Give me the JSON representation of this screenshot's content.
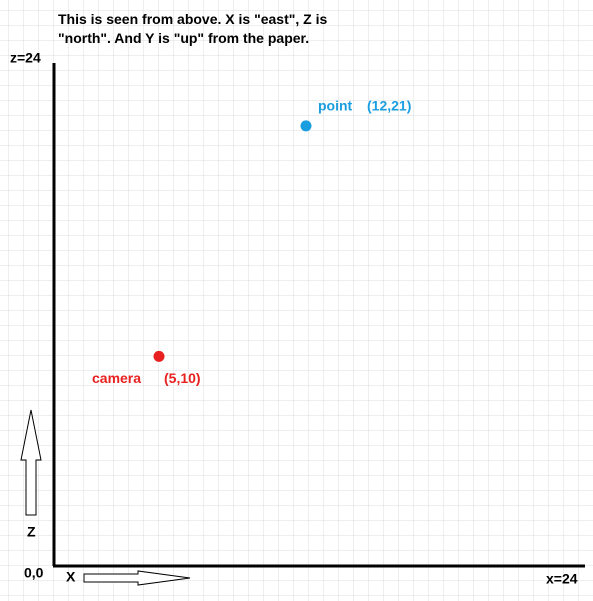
{
  "chart_data": {
    "type": "scatter",
    "title": "This is seen from above. X is \"east\", Z is \"north\". And Y is \"up\" from the paper.",
    "xlim": [
      0,
      24
    ],
    "ylim": [
      0,
      24
    ],
    "x_end_label": "x=24",
    "y_end_label": "z=24",
    "origin_label": "0,0",
    "x_axis_label": "X",
    "y_axis_label": "Z",
    "series": [
      {
        "name": "point",
        "color": "#1a9ee0",
        "x": [
          12
        ],
        "values": [
          21
        ],
        "point_labels": [
          "(12,21)"
        ]
      },
      {
        "name": "camera",
        "color": "#e82020",
        "x": [
          5
        ],
        "values": [
          10
        ],
        "point_labels": [
          "(5,10)"
        ]
      }
    ]
  }
}
